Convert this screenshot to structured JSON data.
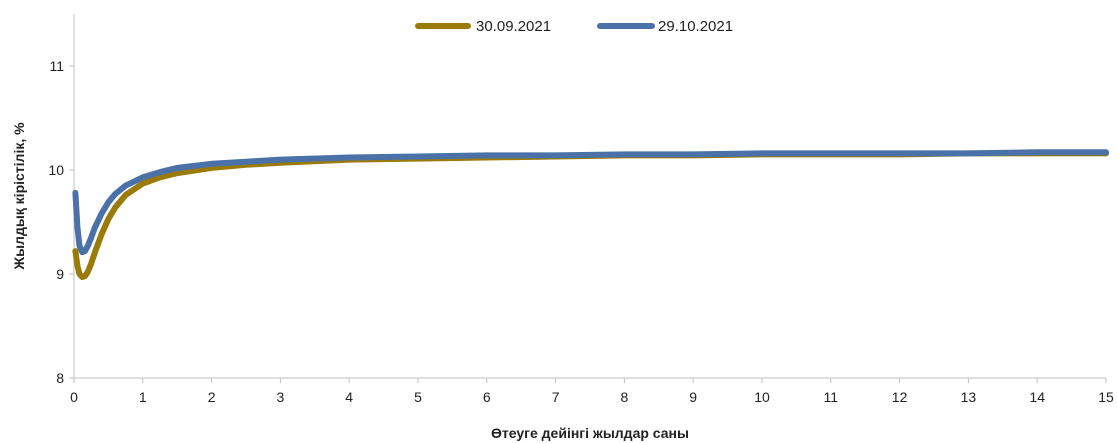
{
  "chart_data": {
    "type": "line",
    "title": "",
    "xlabel": "Өтеуге дейінгі жылдар саны",
    "ylabel": "Жылдық кірістілік, %",
    "xlim": [
      0,
      15
    ],
    "ylim": [
      8,
      11.5
    ],
    "x_ticks": [
      0,
      1,
      2,
      3,
      4,
      5,
      6,
      7,
      8,
      9,
      10,
      11,
      12,
      13,
      14,
      15
    ],
    "y_ticks": [
      8,
      9,
      10,
      11
    ],
    "grid": false,
    "legend_position": "top-center",
    "series": [
      {
        "name": "30.09.2021",
        "color": "#9a7b0a",
        "x": [
          0.02,
          0.05,
          0.08,
          0.12,
          0.16,
          0.2,
          0.25,
          0.3,
          0.4,
          0.5,
          0.6,
          0.75,
          1,
          1.25,
          1.5,
          2,
          2.5,
          3,
          4,
          5,
          6,
          7,
          8,
          9,
          10,
          11,
          12,
          13,
          14,
          15
        ],
        "values": [
          9.22,
          9.08,
          9.0,
          8.97,
          8.98,
          9.02,
          9.1,
          9.2,
          9.38,
          9.53,
          9.64,
          9.76,
          9.87,
          9.93,
          9.97,
          10.02,
          10.05,
          10.07,
          10.1,
          10.11,
          10.12,
          10.13,
          10.14,
          10.14,
          10.15,
          10.15,
          10.15,
          10.16,
          10.16,
          10.16
        ]
      },
      {
        "name": "29.10.2021",
        "color": "#4a72a8",
        "x": [
          0.02,
          0.05,
          0.08,
          0.12,
          0.16,
          0.2,
          0.25,
          0.3,
          0.4,
          0.5,
          0.6,
          0.75,
          1,
          1.25,
          1.5,
          2,
          2.5,
          3,
          4,
          5,
          6,
          7,
          8,
          9,
          10,
          11,
          12,
          13,
          14,
          15
        ],
        "values": [
          9.78,
          9.45,
          9.27,
          9.21,
          9.22,
          9.27,
          9.35,
          9.44,
          9.58,
          9.69,
          9.77,
          9.85,
          9.93,
          9.98,
          10.02,
          10.06,
          10.08,
          10.1,
          10.12,
          10.13,
          10.14,
          10.14,
          10.15,
          10.15,
          10.16,
          10.16,
          10.16,
          10.16,
          10.17,
          10.17
        ]
      }
    ]
  }
}
